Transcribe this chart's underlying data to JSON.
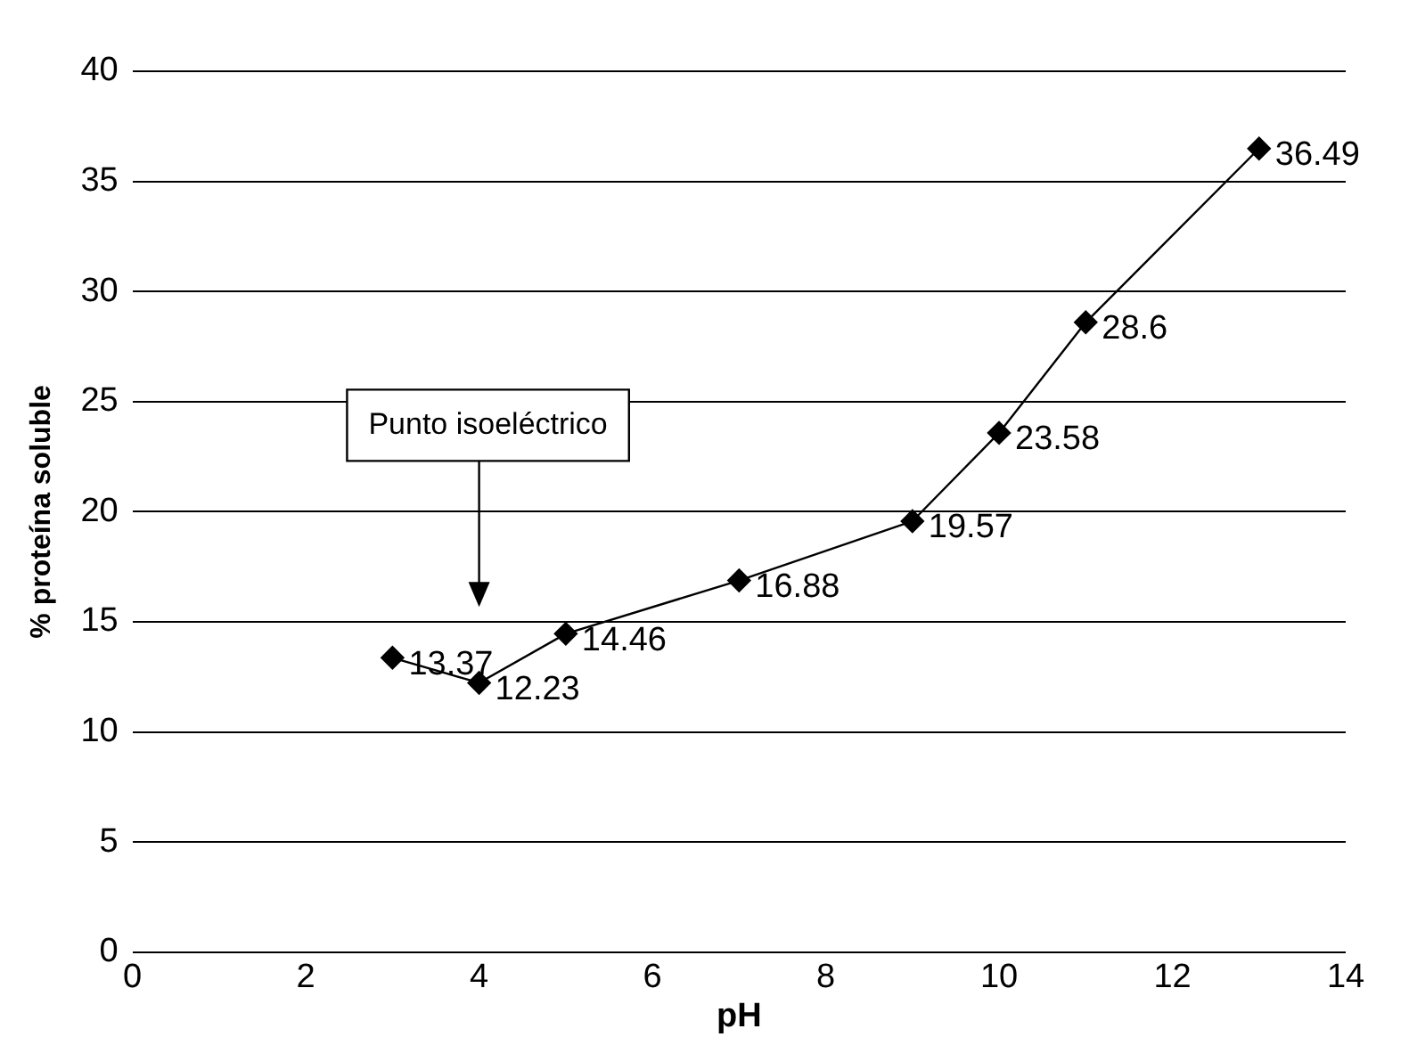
{
  "chart_data": {
    "type": "line",
    "xlabel": "pH",
    "ylabel": "% proteína soluble",
    "x": [
      3,
      4,
      5,
      7,
      9,
      10,
      11,
      13
    ],
    "series": [
      {
        "color": "#000000",
        "values": [
          13.37,
          12.23,
          14.46,
          16.88,
          19.57,
          23.58,
          28.6,
          36.49
        ]
      }
    ],
    "xlim": [
      0,
      14
    ],
    "xticks": [
      0,
      2,
      4,
      6,
      8,
      10,
      12,
      14
    ],
    "ylim": [
      0,
      40
    ],
    "yticks": [
      0,
      5,
      10,
      15,
      20,
      25,
      30,
      35,
      40
    ],
    "grid": "y",
    "legend": false,
    "marker": "diamond",
    "line_style": "solid",
    "data_labels": true,
    "annotations": [
      "Punto isoeléctrico"
    ]
  }
}
